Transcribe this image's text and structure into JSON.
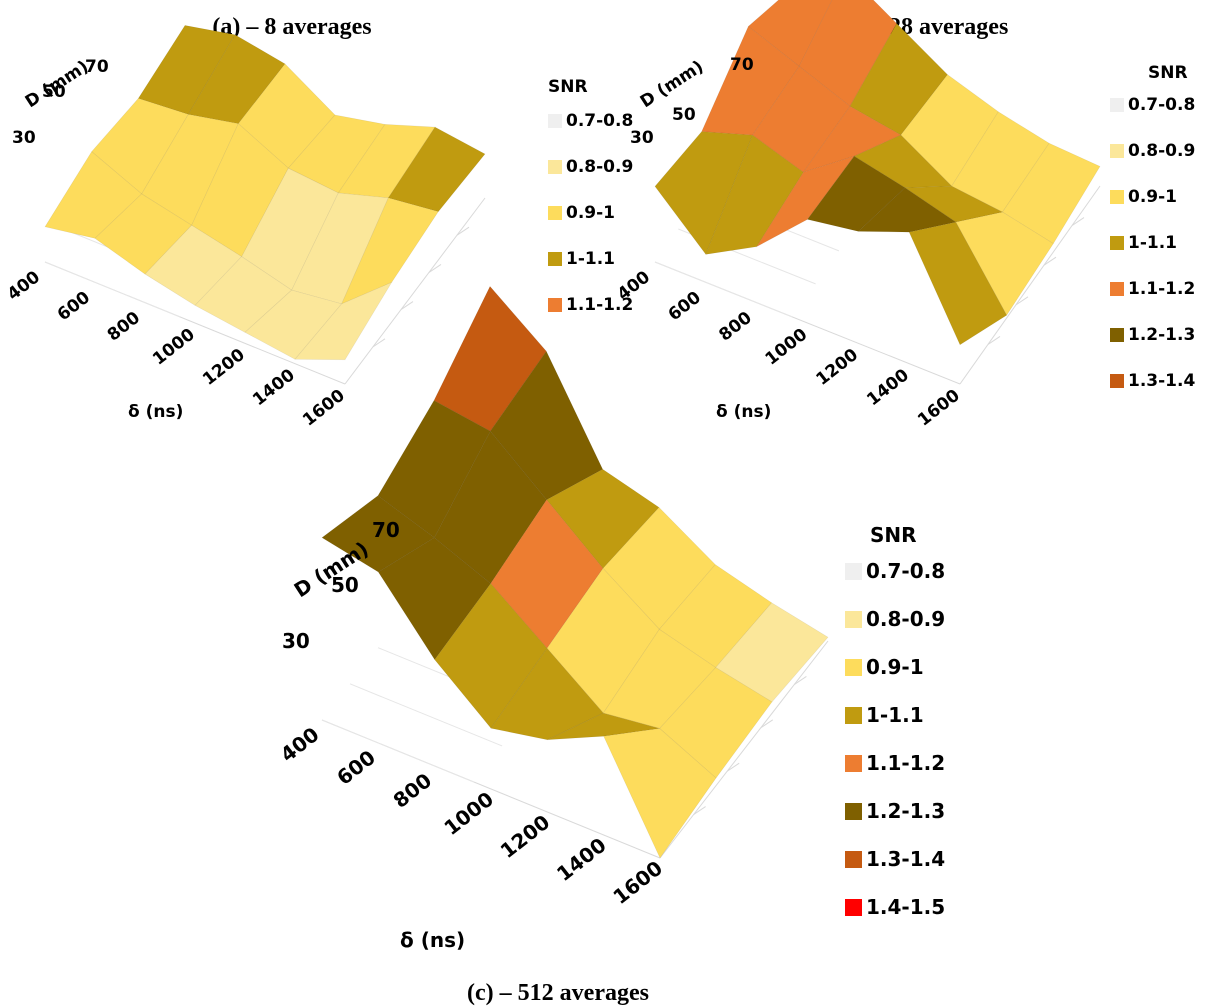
{
  "chart_data": [
    {
      "type": "surface",
      "title": "(a) – 8 averages",
      "xlabel": "δ (ns)",
      "ylabel": "D (mm)",
      "x_ticks": [
        "400",
        "600",
        "800",
        "1000",
        "1200",
        "1400",
        "1600"
      ],
      "y_ticks": [
        "30",
        "50",
        "70"
      ],
      "legend_title": "SNR",
      "legend": [
        {
          "label": "0.7-0.8",
          "color": "#efefef"
        },
        {
          "label": "0.8-0.9",
          "color": "#fbe79a"
        },
        {
          "label": "0.9-1",
          "color": "#fddc5c"
        },
        {
          "label": "1-1.1",
          "color": "#c09b10"
        },
        {
          "label": "1.1-1.2",
          "color": "#ed7d31"
        }
      ],
      "grid": [
        [
          0.96,
          1.0,
          0.93,
          0.88,
          0.85,
          0.82,
          0.91
        ],
        [
          1.02,
          0.92,
          0.87,
          0.82,
          0.76,
          0.79,
          0.98
        ],
        [
          0.98,
          1.0,
          1.05,
          0.94,
          0.92,
          0.99,
          1.02
        ],
        [
          1.03,
          1.08,
          1.04,
          0.9,
          0.95,
          1.03,
          1.0
        ]
      ]
    },
    {
      "type": "surface",
      "title": "(b) – 128 averages",
      "xlabel": "δ (ns)",
      "ylabel": "D (mm)",
      "x_ticks": [
        "400",
        "600",
        "800",
        "1000",
        "1200",
        "1400",
        "1600"
      ],
      "y_ticks": [
        "30",
        "50",
        "70"
      ],
      "legend_title": "SNR",
      "legend": [
        {
          "label": "0.7-0.8",
          "color": "#efefef"
        },
        {
          "label": "0.8-0.9",
          "color": "#fbe79a"
        },
        {
          "label": "0.9-1",
          "color": "#fddc5c"
        },
        {
          "label": "1-1.1",
          "color": "#c09b10"
        },
        {
          "label": "1.1-1.2",
          "color": "#ed7d31"
        },
        {
          "label": "1.2-1.3",
          "color": "#7f6000"
        },
        {
          "label": "1.3-1.4",
          "color": "#c55a11"
        }
      ],
      "grid": [
        [
          1.12,
          0.95,
          1.05,
          1.22,
          1.25,
          1.32,
          0.99
        ],
        [
          1.08,
          1.14,
          1.08,
          1.21,
          1.17,
          1.12,
          0.86
        ],
        [
          1.22,
          1.15,
          1.08,
          1.05,
          0.94,
          0.92,
          0.88
        ],
        [
          1.13,
          1.25,
          1.14,
          1.03,
          0.97,
          0.93,
          0.92
        ]
      ]
    },
    {
      "type": "surface",
      "title": "(c) – 512 averages",
      "xlabel": "δ (ns)",
      "ylabel": "D (mm)",
      "x_ticks": [
        "400",
        "600",
        "800",
        "1000",
        "1200",
        "1400",
        "1600"
      ],
      "y_ticks": [
        "30",
        "50",
        "70"
      ],
      "legend_title": "SNR",
      "legend": [
        {
          "label": "0.7-0.8",
          "color": "#efefef"
        },
        {
          "label": "0.8-0.9",
          "color": "#fbe79a"
        },
        {
          "label": "0.9-1",
          "color": "#fddc5c"
        },
        {
          "label": "1-1.1",
          "color": "#c09b10"
        },
        {
          "label": "1.1-1.2",
          "color": "#ed7d31"
        },
        {
          "label": "1.2-1.3",
          "color": "#7f6000"
        },
        {
          "label": "1.3-1.4",
          "color": "#c55a11"
        },
        {
          "label": "1.4-1.5",
          "color": "#ff0000"
        }
      ],
      "grid": [
        [
          1.34,
          1.31,
          1.14,
          1.02,
          1.05,
          1.12,
          0.86
        ],
        [
          1.26,
          1.21,
          1.15,
          1.04,
          0.93,
          0.95,
          0.88
        ],
        [
          1.32,
          1.3,
          1.18,
          1.06,
          0.96,
          0.92,
          0.89
        ],
        [
          1.43,
          1.32,
          1.07,
          1.03,
          0.94,
          0.9,
          0.87
        ]
      ]
    }
  ]
}
